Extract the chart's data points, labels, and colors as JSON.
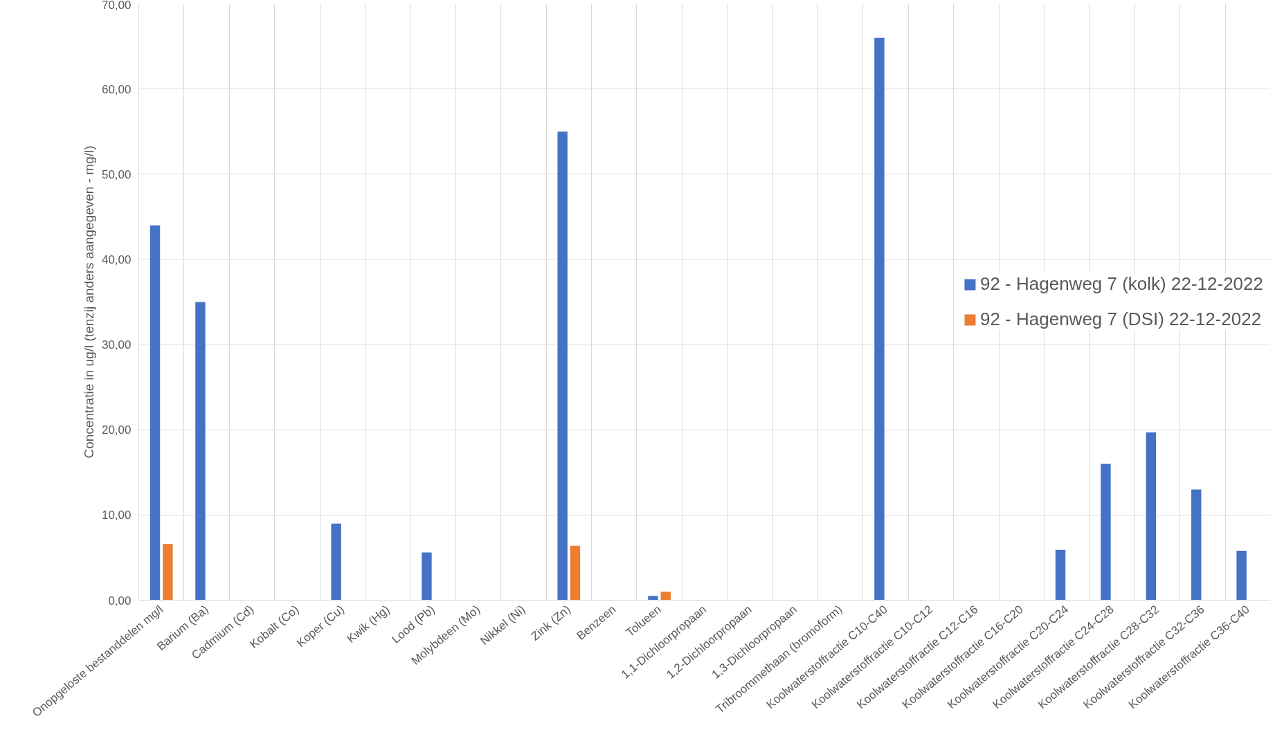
{
  "chart_data": {
    "type": "bar",
    "ylabel": "Concentratie in ug/l (tenzij anders aangegeven - mg/l)",
    "categories": [
      "Onopgeloste bestanddelen mg/l",
      "Barium (Ba)",
      "Cadmium (Cd)",
      "Kobalt (Co)",
      "Koper (Cu)",
      "Kwik (Hg)",
      "Lood (Pb)",
      "Molybdeen (Mo)",
      "Nikkel (Ni)",
      "Zink (Zn)",
      "Benzeen",
      "Tolueen",
      "1,1-Dichloorpropaan",
      "1,2-Dichloorpropaan",
      "1,3-Dichloorpropaan",
      "Tribroommethaan (bromoform)",
      "Koolwaterstoffractie C10-C40",
      "Koolwaterstoffractie C10-C12",
      "Koolwaterstoffractie C12-C16",
      "Koolwaterstoffractie C16-C20",
      "Koolwaterstoffractie C20-C24",
      "Koolwaterstoffractie C24-C28",
      "Koolwaterstoffractie C28-C32",
      "Koolwaterstoffractie C32-C36",
      "Koolwaterstoffractie C36-C40"
    ],
    "series": [
      {
        "name": "92 - Hagenweg 7 (kolk) 22-12-2022",
        "color": "#4472c4",
        "values": [
          44,
          35,
          null,
          null,
          9,
          null,
          5.6,
          null,
          null,
          55,
          null,
          0.5,
          null,
          null,
          null,
          null,
          66,
          null,
          null,
          null,
          5.9,
          16,
          19.7,
          13,
          5.8
        ]
      },
      {
        "name": "92 - Hagenweg 7 (DSI) 22-12-2022",
        "color": "#ed7d31",
        "values": [
          6.6,
          null,
          null,
          null,
          null,
          null,
          null,
          null,
          null,
          6.4,
          null,
          1.0,
          null,
          null,
          null,
          null,
          null,
          null,
          null,
          null,
          null,
          null,
          null,
          null,
          null
        ]
      }
    ],
    "ylim": [
      0,
      70
    ],
    "yticks": [
      {
        "value": 0,
        "label": "0,00"
      },
      {
        "value": 10,
        "label": "10,00"
      },
      {
        "value": 20,
        "label": "20,00"
      },
      {
        "value": 30,
        "label": "30,00"
      },
      {
        "value": 40,
        "label": "40,00"
      },
      {
        "value": 50,
        "label": "50,00"
      },
      {
        "value": 60,
        "label": "60,00"
      },
      {
        "value": 70,
        "label": "70,00"
      }
    ],
    "grid": true,
    "legend": "right"
  }
}
